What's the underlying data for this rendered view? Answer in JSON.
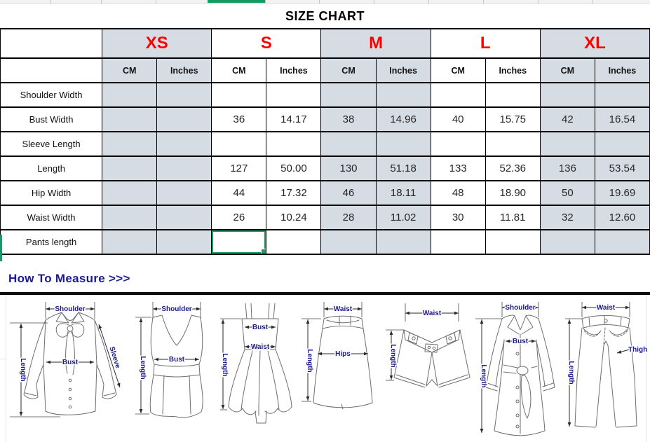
{
  "title": "SIZE CHART",
  "colors": {
    "size_name_red": "#FF0000",
    "column_fill_gray": "#D6DCE4",
    "selection_green": "#169B62",
    "measure_label_navy": "#1b1b8f"
  },
  "table": {
    "sizes": [
      "XS",
      "S",
      "M",
      "L",
      "XL"
    ],
    "unit_headers": [
      "CM",
      "Inches"
    ],
    "rows": [
      {
        "label": "Shoulder Width",
        "values": [
          "",
          "",
          "",
          "",
          "",
          "",
          "",
          "",
          "",
          ""
        ]
      },
      {
        "label": "Bust Width",
        "values": [
          "",
          "",
          "36",
          "14.17",
          "38",
          "14.96",
          "40",
          "15.75",
          "42",
          "16.54"
        ]
      },
      {
        "label": "Sleeve Length",
        "values": [
          "",
          "",
          "",
          "",
          "",
          "",
          "",
          "",
          "",
          ""
        ]
      },
      {
        "label": "Length",
        "values": [
          "",
          "",
          "127",
          "50.00",
          "130",
          "51.18",
          "133",
          "52.36",
          "136",
          "53.54"
        ]
      },
      {
        "label": "Hip Width",
        "values": [
          "",
          "",
          "44",
          "17.32",
          "46",
          "18.11",
          "48",
          "18.90",
          "50",
          "19.69"
        ]
      },
      {
        "label": "Waist Width",
        "values": [
          "",
          "",
          "26",
          "10.24",
          "28",
          "11.02",
          "30",
          "11.81",
          "32",
          "12.60"
        ]
      },
      {
        "label": "Pants length",
        "values": [
          "",
          "",
          "",
          "",
          "",
          "",
          "",
          "",
          "",
          ""
        ]
      }
    ]
  },
  "measure": {
    "heading": "How To Measure >>>",
    "figures": [
      {
        "name": "blouse",
        "labels": {
          "shoulder": "Shoulder",
          "length": "Length",
          "bust": "Bust",
          "sleeve": "Sleeve"
        }
      },
      {
        "name": "vest",
        "labels": {
          "shoulder": "Shoulder",
          "length": "Length",
          "bust": "Bust"
        }
      },
      {
        "name": "dress",
        "labels": {
          "length": "Length",
          "bust": "Bust",
          "waist": "Waist"
        }
      },
      {
        "name": "skirt",
        "labels": {
          "waist": "Waist",
          "length": "Length",
          "hips": "Hips"
        }
      },
      {
        "name": "shorts",
        "labels": {
          "waist": "Waist",
          "length": "Length"
        }
      },
      {
        "name": "coat",
        "labels": {
          "shoulder": "Shoulder",
          "length": "Length",
          "bust": "Bust"
        }
      },
      {
        "name": "jeans",
        "labels": {
          "waist": "Waist",
          "length": "Length",
          "thigh": "Thigh"
        }
      }
    ]
  }
}
